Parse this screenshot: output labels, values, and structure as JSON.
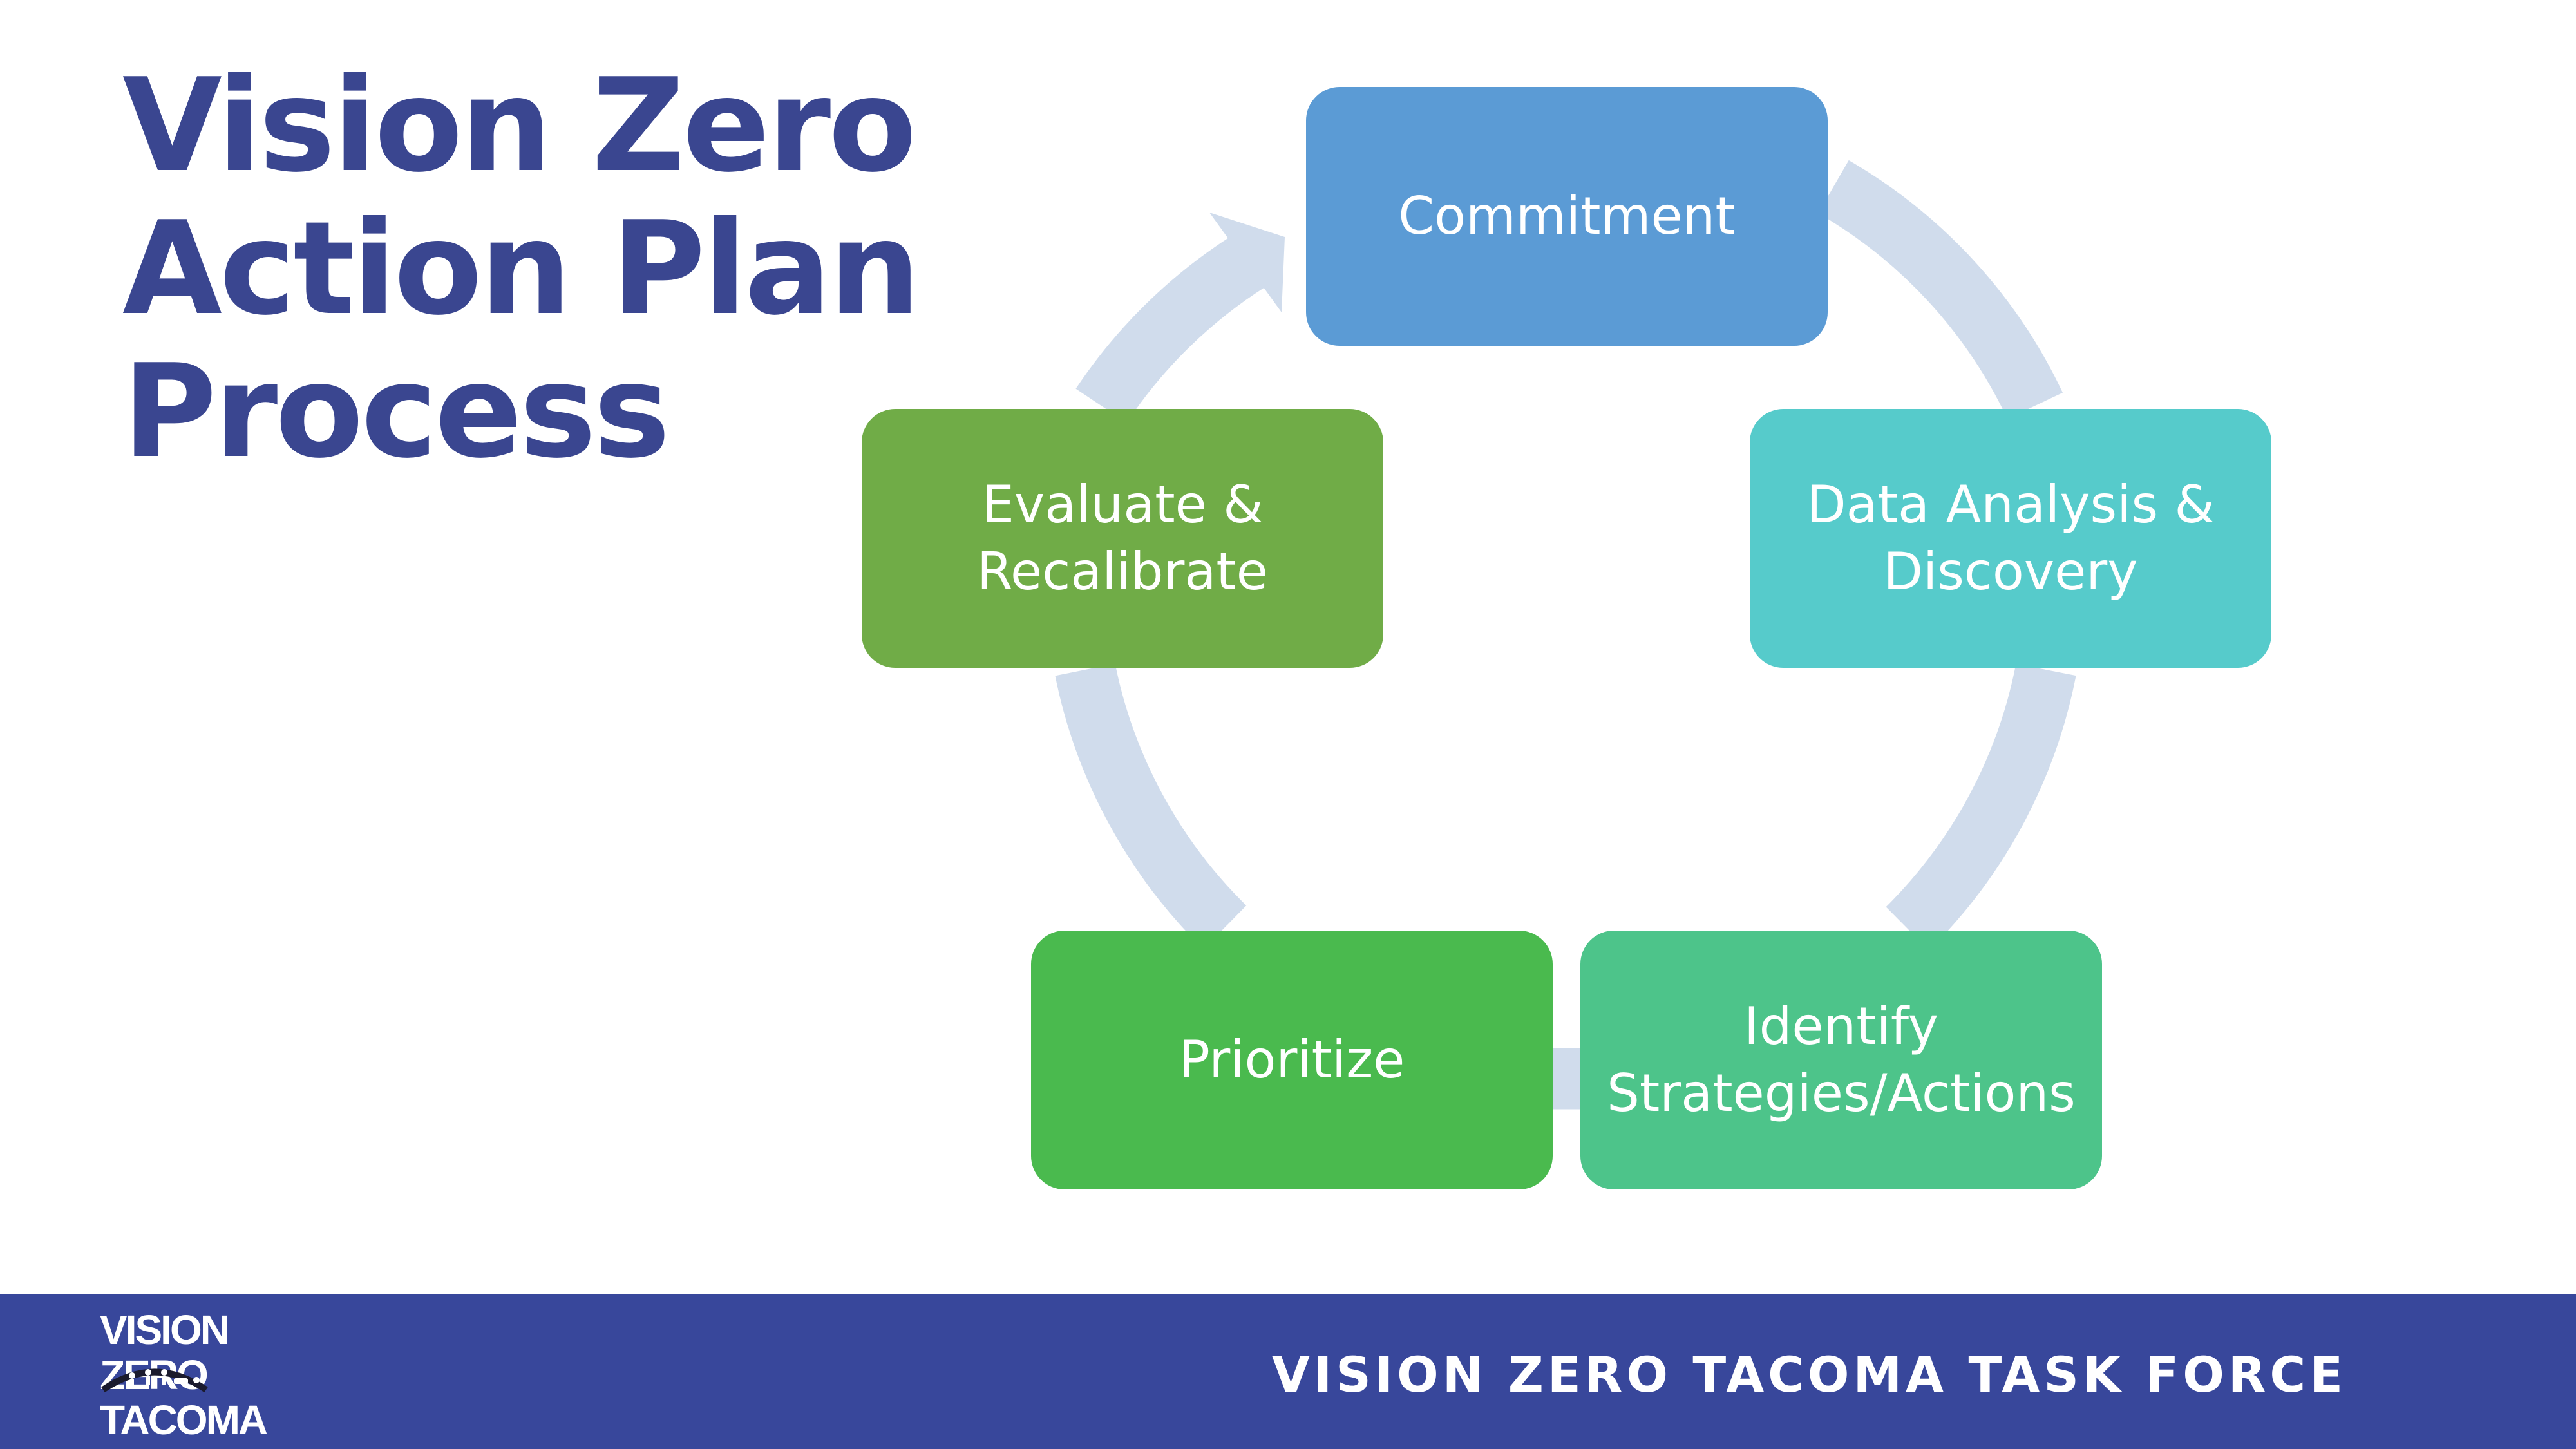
{
  "title": {
    "line1": "Vision Zero",
    "line2": "Action Plan",
    "line3": "Process"
  },
  "cycle": {
    "steps": [
      {
        "label": "Commitment",
        "color": "#5b9bd5"
      },
      {
        "label": "Data Analysis &\nDiscovery",
        "color": "#56cbcb"
      },
      {
        "label": "Identify\nStrategies/Actions",
        "color": "#4dc48a"
      },
      {
        "label": "Prioritize",
        "color": "#4aba4e"
      },
      {
        "label": "Evaluate &\nRecalibrate",
        "color": "#70ac47"
      }
    ],
    "ring_color": "#d0dcec"
  },
  "footer": {
    "logo_lines": [
      "VISION",
      "ZERO",
      "TACOMA"
    ],
    "tagline": "VISION ZERO TACOMA TASK FORCE",
    "background": "#38479b"
  }
}
